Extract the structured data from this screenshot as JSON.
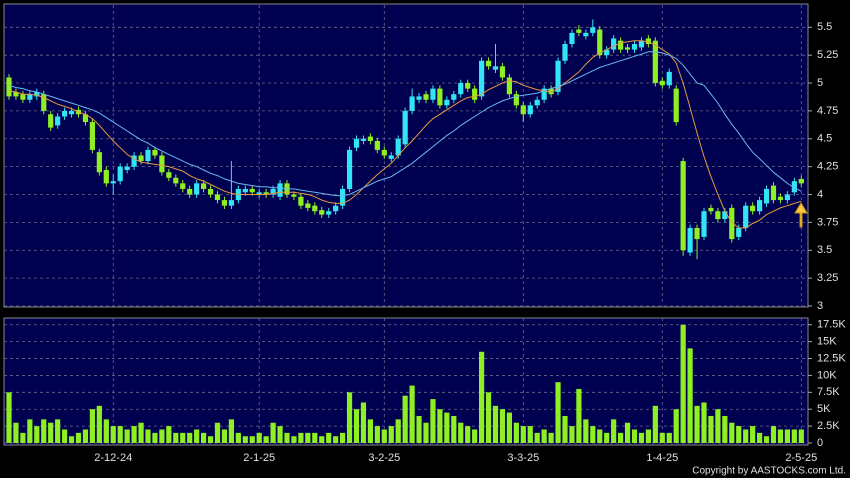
{
  "chart_data": {
    "type": "candlestick",
    "categories": [
      null,
      null,
      null,
      null,
      null,
      null,
      null,
      null,
      null,
      null,
      null,
      null,
      null,
      null,
      null,
      "2-12-24",
      null,
      null,
      null,
      null,
      null,
      null,
      null,
      null,
      null,
      null,
      null,
      null,
      null,
      null,
      null,
      null,
      null,
      null,
      null,
      null,
      "2-1-25",
      null,
      null,
      null,
      null,
      null,
      null,
      null,
      null,
      null,
      null,
      null,
      null,
      null,
      null,
      null,
      null,
      null,
      "3-2-25",
      null,
      null,
      null,
      null,
      null,
      null,
      null,
      null,
      null,
      null,
      null,
      null,
      null,
      null,
      null,
      null,
      null,
      null,
      null,
      "3-3-25",
      null,
      null,
      null,
      null,
      null,
      null,
      null,
      null,
      null,
      null,
      null,
      null,
      null,
      null,
      null,
      null,
      null,
      null,
      null,
      "1-4-25",
      null,
      null,
      null,
      null,
      null,
      null,
      null,
      null,
      null,
      null,
      null,
      null,
      null,
      null,
      null,
      null,
      null,
      null,
      null,
      "2-5-25"
    ],
    "open": [
      5.05,
      4.92,
      4.9,
      4.85,
      4.88,
      4.9,
      4.72,
      4.62,
      4.7,
      4.72,
      4.76,
      4.72,
      4.65,
      4.38,
      4.22,
      4.1,
      4.12,
      4.22,
      4.25,
      4.35,
      4.3,
      4.4,
      4.35,
      4.2,
      4.15,
      4.1,
      4.05,
      4.0,
      4.1,
      4.05,
      4.0,
      3.95,
      3.9,
      3.95,
      4.02,
      4.05,
      4.0,
      4.02,
      4.0,
      3.98,
      4.1,
      4.0,
      3.98,
      3.92,
      3.9,
      3.86,
      3.82,
      3.85,
      3.9,
      4.05,
      4.42,
      4.48,
      4.52,
      4.48,
      4.4,
      4.32,
      4.35,
      4.45,
      4.75,
      4.85,
      4.9,
      4.85,
      4.95,
      4.8,
      4.85,
      4.9,
      5.0,
      4.95,
      4.88,
      5.2,
      5.12,
      5.15,
      5.05,
      4.9,
      4.8,
      4.72,
      4.8,
      4.85,
      4.95,
      4.92,
      5.2,
      5.35,
      5.48,
      5.42,
      5.45,
      5.48,
      5.25,
      5.3,
      5.38,
      5.32,
      5.3,
      5.32,
      5.4,
      5.38,
      5.02,
      4.98,
      4.95,
      4.3,
      3.48,
      3.7,
      3.62,
      3.88,
      3.85,
      3.78,
      3.88,
      3.62,
      3.7,
      3.9,
      3.85,
      3.92,
      4.08,
      3.98,
      3.95,
      4.02,
      4.14
    ],
    "high": [
      5.08,
      4.95,
      4.93,
      4.93,
      4.95,
      4.93,
      4.75,
      4.73,
      4.78,
      4.78,
      4.79,
      4.75,
      4.68,
      4.41,
      4.25,
      4.18,
      4.28,
      4.28,
      4.38,
      4.38,
      4.43,
      4.43,
      4.38,
      4.23,
      4.18,
      4.13,
      4.08,
      4.13,
      4.13,
      4.08,
      4.03,
      3.98,
      4.3,
      4.08,
      4.08,
      4.08,
      4.05,
      4.05,
      4.08,
      4.13,
      4.13,
      4.03,
      4.01,
      3.95,
      3.93,
      3.89,
      3.88,
      3.93,
      4.08,
      4.43,
      4.53,
      4.53,
      4.55,
      4.51,
      4.43,
      4.38,
      4.53,
      4.78,
      4.95,
      4.91,
      4.93,
      4.98,
      4.98,
      4.88,
      4.93,
      5.03,
      5.03,
      4.98,
      5.23,
      5.23,
      5.35,
      5.18,
      5.08,
      4.93,
      4.83,
      4.83,
      4.88,
      4.98,
      4.98,
      5.23,
      5.38,
      5.48,
      5.52,
      5.48,
      5.57,
      5.51,
      5.33,
      5.43,
      5.41,
      5.35,
      5.38,
      5.41,
      5.43,
      5.41,
      5.05,
      5.13,
      4.98,
      4.33,
      3.73,
      3.73,
      3.88,
      3.91,
      3.88,
      3.88,
      3.91,
      3.73,
      3.93,
      3.93,
      3.98,
      4.08,
      4.11,
      4.01,
      4.03,
      4.15,
      4.17
    ],
    "low": [
      4.85,
      4.85,
      4.82,
      4.82,
      4.85,
      4.72,
      4.57,
      4.59,
      4.67,
      4.69,
      4.69,
      4.62,
      4.37,
      4.17,
      4.07,
      4.0,
      4.09,
      4.19,
      4.22,
      4.27,
      4.27,
      4.32,
      4.17,
      4.12,
      4.07,
      4.02,
      3.97,
      3.97,
      4.02,
      3.97,
      3.92,
      3.87,
      3.87,
      3.92,
      3.99,
      3.99,
      3.97,
      3.97,
      3.97,
      3.95,
      3.97,
      3.95,
      3.87,
      3.85,
      3.82,
      3.79,
      3.79,
      3.82,
      3.87,
      4.02,
      4.39,
      4.45,
      4.45,
      4.37,
      4.32,
      4.29,
      4.32,
      4.42,
      4.72,
      4.82,
      4.82,
      4.82,
      4.77,
      4.77,
      4.82,
      4.87,
      4.92,
      4.82,
      4.85,
      5.12,
      5.09,
      5.02,
      4.87,
      4.77,
      4.65,
      4.69,
      4.77,
      4.82,
      4.87,
      4.89,
      5.17,
      5.32,
      5.42,
      5.39,
      5.42,
      5.22,
      5.22,
      5.27,
      5.27,
      5.27,
      5.27,
      5.29,
      5.32,
      4.97,
      4.95,
      4.95,
      4.62,
      3.45,
      3.45,
      3.42,
      3.59,
      3.82,
      3.75,
      3.75,
      3.57,
      3.59,
      3.67,
      3.82,
      3.82,
      3.89,
      3.92,
      3.92,
      3.92,
      3.99,
      4.07
    ],
    "close": [
      4.88,
      4.88,
      4.85,
      4.9,
      4.92,
      4.75,
      4.6,
      4.7,
      4.75,
      4.75,
      4.72,
      4.65,
      4.4,
      4.2,
      4.1,
      4.12,
      4.25,
      4.25,
      4.35,
      4.3,
      4.4,
      4.35,
      4.2,
      4.15,
      4.1,
      4.05,
      4.0,
      4.1,
      4.05,
      4.0,
      3.95,
      3.9,
      3.95,
      4.05,
      4.05,
      4.02,
      4.02,
      4.0,
      4.05,
      4.1,
      4.0,
      3.98,
      3.9,
      3.88,
      3.85,
      3.82,
      3.85,
      3.9,
      4.05,
      4.4,
      4.5,
      4.5,
      4.48,
      4.4,
      4.35,
      4.35,
      4.5,
      4.75,
      4.88,
      4.88,
      4.85,
      4.95,
      4.8,
      4.85,
      4.9,
      5.0,
      4.95,
      4.85,
      5.2,
      5.15,
      5.15,
      5.05,
      4.9,
      4.8,
      4.72,
      4.8,
      4.85,
      4.95,
      4.9,
      5.2,
      5.35,
      5.45,
      5.45,
      5.45,
      5.5,
      5.25,
      5.3,
      5.4,
      5.3,
      5.3,
      5.35,
      5.38,
      5.35,
      5.0,
      4.98,
      5.1,
      4.65,
      3.5,
      3.7,
      3.6,
      3.85,
      3.85,
      3.78,
      3.85,
      3.6,
      3.7,
      3.9,
      3.85,
      3.95,
      4.05,
      3.95,
      3.95,
      4.0,
      4.12,
      4.1
    ],
    "up_color": "#33e4f4",
    "down_color": "#8ef022",
    "lines": [
      {
        "color": "#e89a3c",
        "values": [
          4.93,
          4.92,
          4.9,
          4.9,
          4.89,
          4.87,
          4.84,
          4.81,
          4.79,
          4.77,
          4.74,
          4.72,
          4.68,
          4.62,
          4.55,
          4.48,
          4.42,
          4.36,
          4.32,
          4.29,
          4.28,
          4.27,
          4.26,
          4.25,
          4.23,
          4.21,
          4.17,
          4.14,
          4.12,
          4.09,
          4.06,
          4.03,
          4.01,
          4.0,
          4.0,
          4.0,
          4.0,
          4.0,
          4.01,
          4.02,
          4.02,
          4.02,
          4.01,
          4.0,
          3.98,
          3.95,
          3.93,
          3.92,
          3.92,
          3.95,
          4.0,
          4.06,
          4.12,
          4.18,
          4.23,
          4.28,
          4.35,
          4.42,
          4.48,
          4.55,
          4.62,
          4.68,
          4.72,
          4.76,
          4.8,
          4.84,
          4.87,
          4.88,
          4.9,
          4.94,
          4.97,
          5.0,
          5.02,
          5.01,
          4.98,
          4.96,
          4.94,
          4.93,
          4.92,
          4.95,
          5.0,
          5.05,
          5.1,
          5.17,
          5.23,
          5.27,
          5.3,
          5.33,
          5.36,
          5.37,
          5.38,
          5.38,
          5.37,
          5.34,
          5.3,
          5.26,
          5.18,
          5.0,
          4.78,
          4.55,
          4.34,
          4.16,
          4.0,
          3.85,
          3.75,
          3.7,
          3.7,
          3.74,
          3.77,
          3.82,
          3.85,
          3.88,
          3.9,
          3.92,
          3.94
        ]
      },
      {
        "color": "#6ab8ec",
        "values": [
          4.98,
          4.96,
          4.95,
          4.93,
          4.92,
          4.9,
          4.88,
          4.86,
          4.84,
          4.82,
          4.8,
          4.78,
          4.76,
          4.73,
          4.69,
          4.65,
          4.61,
          4.57,
          4.53,
          4.49,
          4.46,
          4.42,
          4.39,
          4.36,
          4.33,
          4.3,
          4.27,
          4.25,
          4.22,
          4.19,
          4.17,
          4.14,
          4.12,
          4.1,
          4.09,
          4.08,
          4.07,
          4.07,
          4.06,
          4.06,
          4.05,
          4.05,
          4.04,
          4.03,
          4.02,
          4.01,
          4.0,
          3.99,
          3.99,
          4.0,
          4.03,
          4.06,
          4.09,
          4.12,
          4.14,
          4.16,
          4.2,
          4.24,
          4.28,
          4.33,
          4.38,
          4.43,
          4.48,
          4.53,
          4.57,
          4.62,
          4.66,
          4.7,
          4.74,
          4.78,
          4.81,
          4.84,
          4.86,
          4.88,
          4.89,
          4.9,
          4.91,
          4.93,
          4.95,
          4.97,
          4.99,
          5.02,
          5.05,
          5.08,
          5.11,
          5.14,
          5.16,
          5.18,
          5.2,
          5.22,
          5.24,
          5.26,
          5.28,
          5.28,
          5.27,
          5.25,
          5.22,
          5.16,
          5.08,
          5.0,
          4.98,
          4.9,
          4.82,
          4.72,
          4.63,
          4.55,
          4.46,
          4.38,
          4.32,
          4.26,
          4.2,
          4.15,
          4.1,
          4.06,
          4.03
        ]
      }
    ],
    "ylim": [
      3,
      5.7
    ],
    "yticks": [
      5.5,
      5.25,
      5,
      4.75,
      4.5,
      4.25,
      4,
      3.75,
      3.5,
      3.25,
      3
    ],
    "grid": true,
    "volume": {
      "color": "#8ef022",
      "values": [
        7500,
        3000,
        1500,
        3500,
        2500,
        3500,
        3000,
        3500,
        2000,
        1000,
        1500,
        2000,
        5000,
        5500,
        3500,
        2500,
        2500,
        2000,
        2500,
        3000,
        2000,
        1500,
        2000,
        2500,
        1500,
        1500,
        1500,
        2000,
        1500,
        1000,
        3000,
        2000,
        3500,
        1500,
        1000,
        1000,
        1500,
        1000,
        3000,
        2500,
        1500,
        1000,
        1500,
        1500,
        1500,
        1000,
        1500,
        1000,
        1500,
        7500,
        5000,
        6000,
        3500,
        2500,
        2000,
        2500,
        3500,
        7000,
        8500,
        4000,
        3000,
        6500,
        5000,
        4500,
        4000,
        3000,
        2500,
        2000,
        13500,
        7500,
        5500,
        5000,
        4500,
        3000,
        2500,
        2500,
        1500,
        2000,
        1500,
        9000,
        4000,
        2500,
        8000,
        3500,
        2500,
        2000,
        1500,
        3500,
        1500,
        3000,
        2000,
        1500,
        2000,
        5500,
        1500,
        1500,
        5000,
        17500,
        14000,
        5500,
        6000,
        4000,
        5000,
        4000,
        3000,
        2500,
        2000,
        2500,
        1500,
        1000,
        2500,
        2000,
        2000,
        2000,
        2000
      ],
      "ylim": [
        0,
        18500
      ],
      "yticks": [
        {
          "value": 17500,
          "label": "17.5K"
        },
        {
          "value": 15000,
          "label": "15K"
        },
        {
          "value": 12500,
          "label": "12.5K"
        },
        {
          "value": 10000,
          "label": "10K"
        },
        {
          "value": 7500,
          "label": "7.5K"
        },
        {
          "value": 5000,
          "label": "5K"
        },
        {
          "value": 2500,
          "label": "2.5K"
        },
        0
      ]
    },
    "source": "Copyright by AASTOCKS.com Ltd."
  }
}
